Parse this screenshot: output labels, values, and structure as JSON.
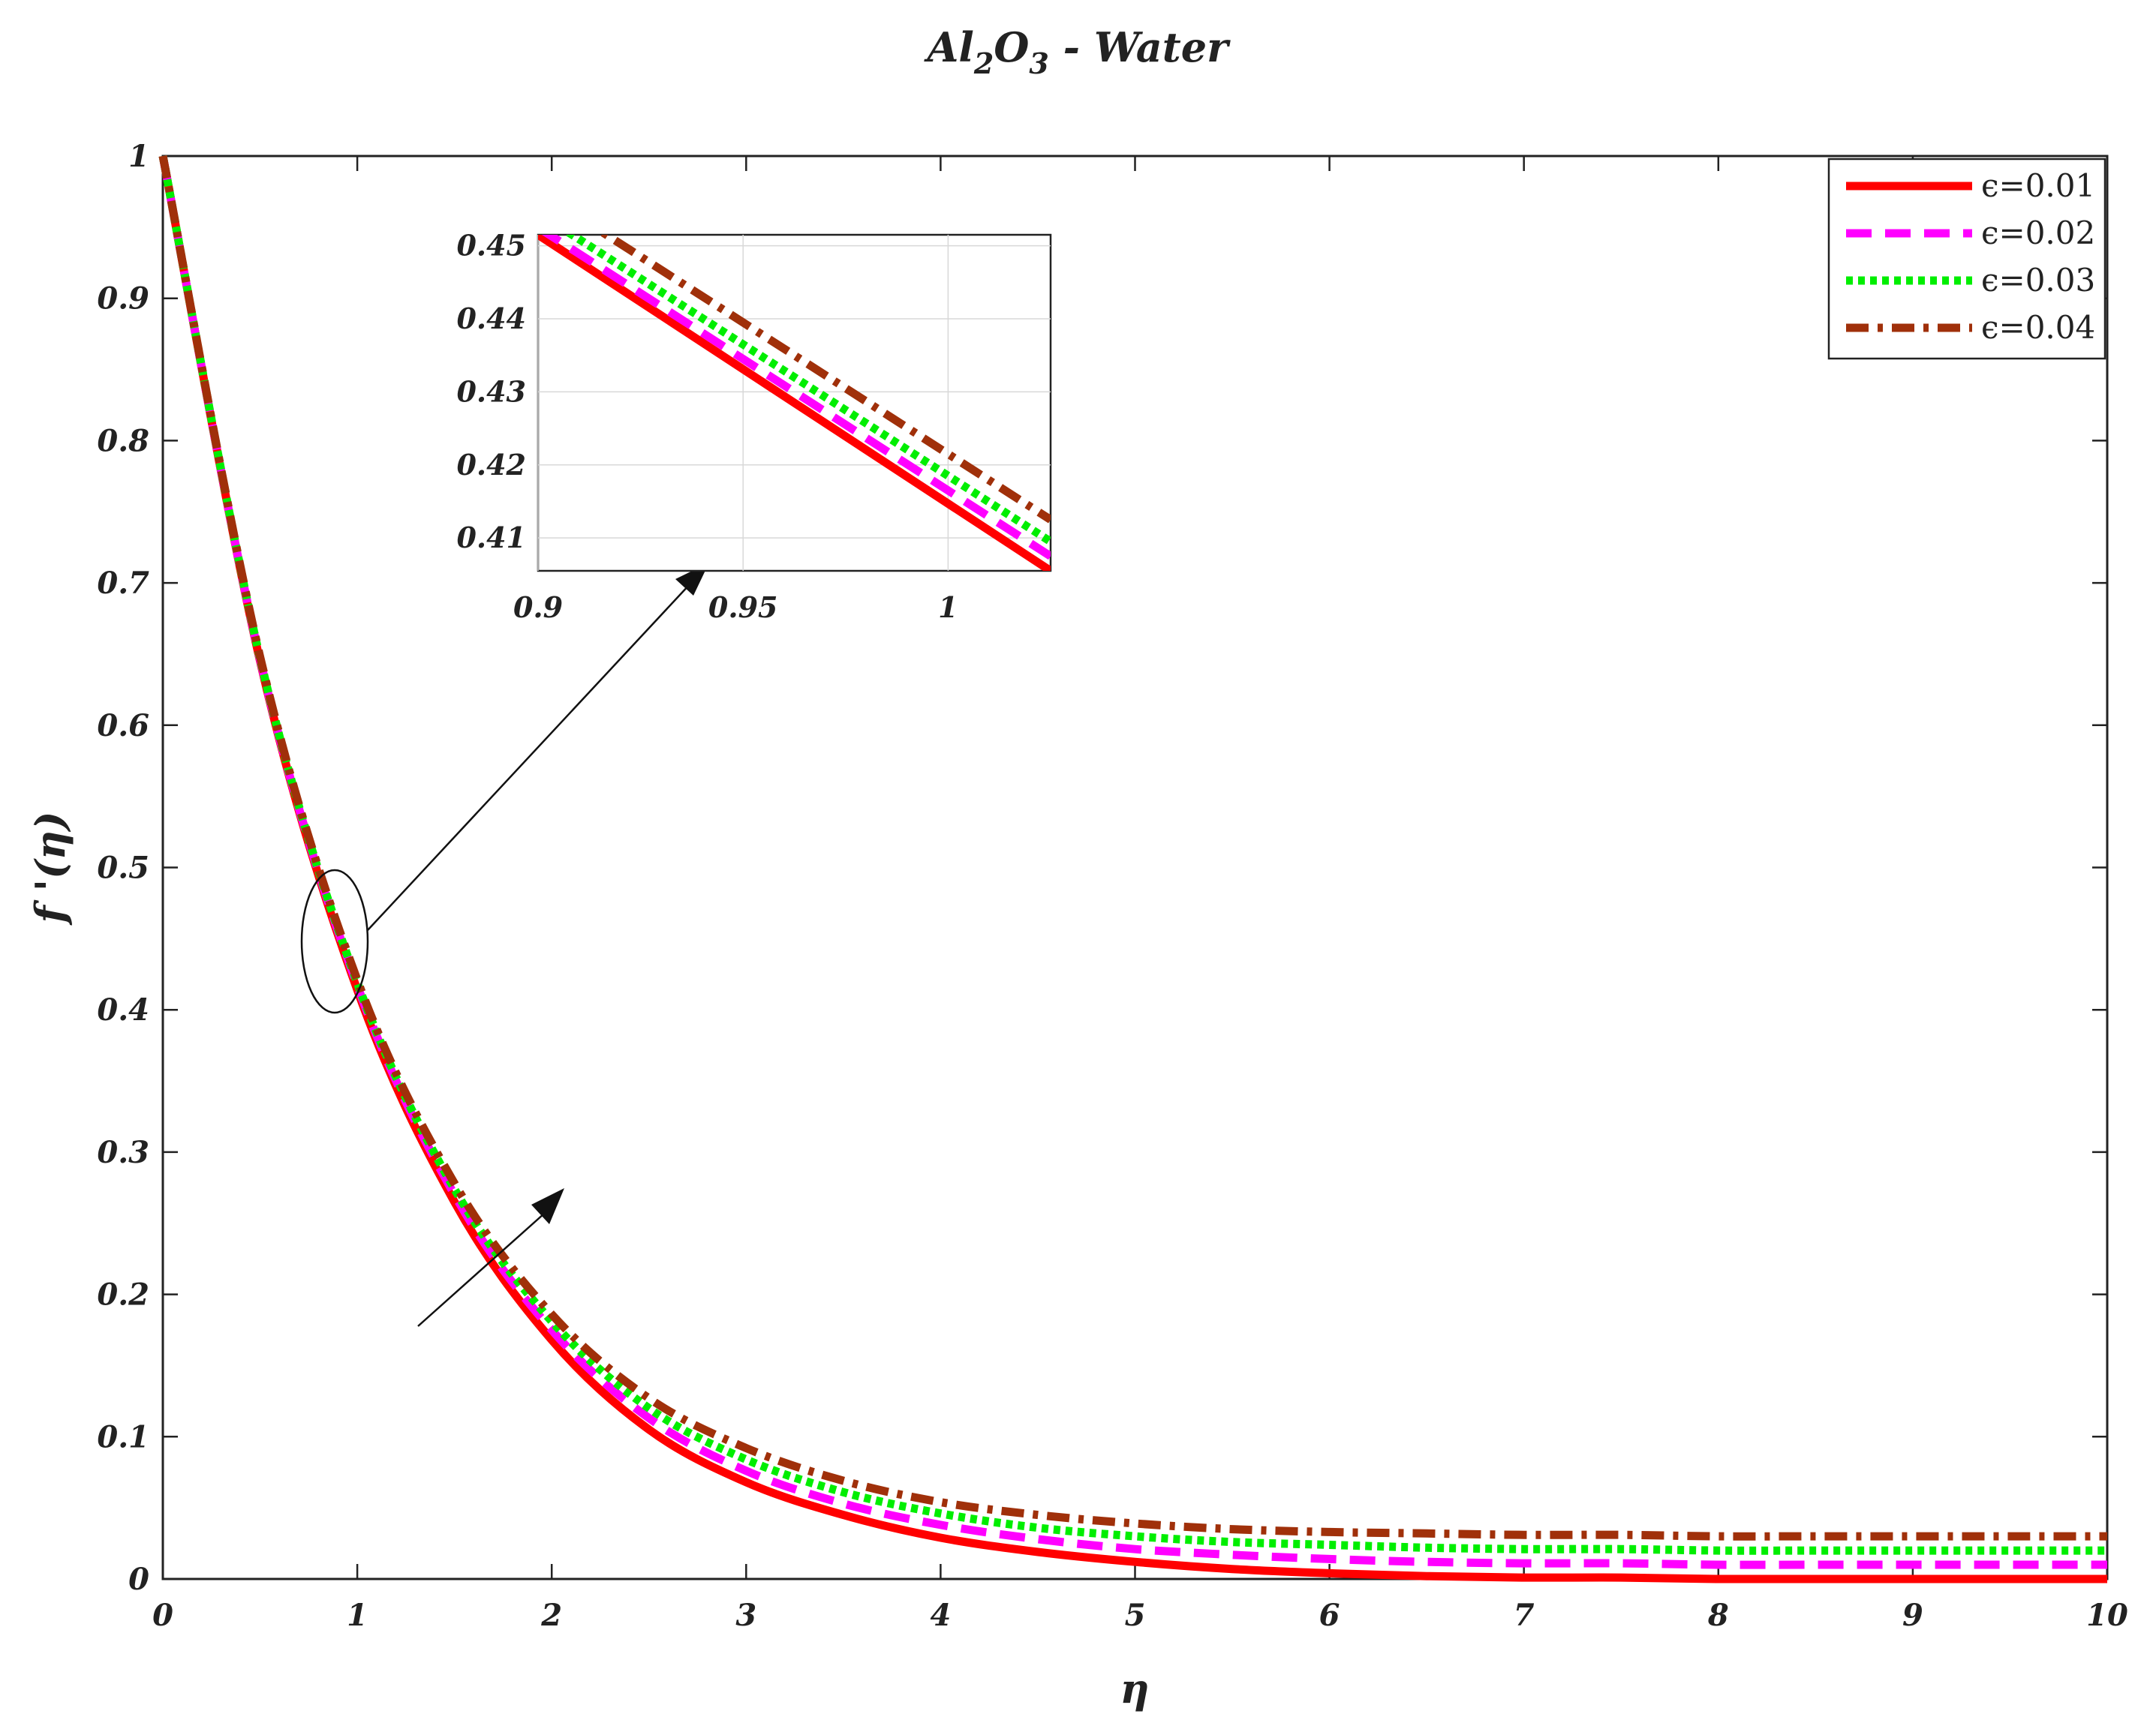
{
  "title": {
    "main": "Al",
    "sub1": "2",
    "mid": "O",
    "sub2": "3",
    "tail": " - Water"
  },
  "xlabel": "η",
  "ylabel": "f '(η)",
  "chart_data": {
    "type": "line",
    "title": "Al2O3 - Water",
    "xlabel": "η",
    "ylabel": "f '(η)",
    "xlim": [
      0,
      10
    ],
    "ylim": [
      0,
      1
    ],
    "xticks": [
      "0",
      "1",
      "2",
      "3",
      "4",
      "5",
      "6",
      "7",
      "8",
      "9",
      "10"
    ],
    "yticks": [
      "0",
      "0.1",
      "0.2",
      "0.3",
      "0.4",
      "0.5",
      "0.6",
      "0.7",
      "0.8",
      "0.9",
      "1"
    ],
    "grid": false,
    "legend_position": "top-right",
    "x": [
      0,
      0.5,
      1,
      1.5,
      2,
      2.5,
      3,
      3.5,
      4,
      4.5,
      5,
      5.5,
      6,
      6.5,
      7,
      7.5,
      8,
      8.5,
      9,
      9.5,
      10
    ],
    "series": [
      {
        "name": "ϵ=0.01",
        "color": "#ff0000",
        "style": "solid",
        "values": [
          1.0,
          0.645,
          0.414,
          0.265,
          0.168,
          0.105,
          0.068,
          0.045,
          0.029,
          0.019,
          0.012,
          0.007,
          0.004,
          0.002,
          0.001,
          0.001,
          0.0,
          0.0,
          0.0,
          0.0,
          0.0
        ]
      },
      {
        "name": "ϵ=0.02",
        "color": "#ff00ff",
        "style": "dashed",
        "values": [
          1.0,
          0.646,
          0.417,
          0.27,
          0.175,
          0.113,
          0.076,
          0.053,
          0.038,
          0.028,
          0.021,
          0.017,
          0.014,
          0.012,
          0.011,
          0.011,
          0.01,
          0.01,
          0.01,
          0.01,
          0.01
        ]
      },
      {
        "name": "ϵ=0.03",
        "color": "#00ee00",
        "style": "dotted",
        "values": [
          1.0,
          0.647,
          0.419,
          0.274,
          0.181,
          0.12,
          0.084,
          0.061,
          0.046,
          0.036,
          0.03,
          0.026,
          0.024,
          0.022,
          0.021,
          0.021,
          0.02,
          0.02,
          0.02,
          0.02,
          0.02
        ]
      },
      {
        "name": "ϵ=0.04",
        "color": "#a0300a",
        "style": "dashdot",
        "values": [
          1.0,
          0.648,
          0.421,
          0.278,
          0.186,
          0.127,
          0.092,
          0.069,
          0.054,
          0.045,
          0.039,
          0.035,
          0.033,
          0.032,
          0.031,
          0.031,
          0.03,
          0.03,
          0.03,
          0.03,
          0.03
        ]
      }
    ],
    "inset": {
      "xlim": [
        0.9,
        1.025
      ],
      "ylim": [
        0.4055,
        0.4515
      ],
      "xticks": [
        "0.9",
        "0.95",
        "1"
      ],
      "yticks": [
        "0.41",
        "0.42",
        "0.43",
        "0.44",
        "0.45"
      ],
      "grid": true,
      "lines": [
        {
          "name": "ϵ=0.01",
          "x": [
            0.9,
            1.025
          ],
          "y": [
            0.4515,
            0.4055
          ]
        },
        {
          "name": "ϵ=0.02",
          "x": [
            0.9,
            1.025
          ],
          "y": [
            0.4525,
            0.4075
          ]
        },
        {
          "name": "ϵ=0.03",
          "x": [
            0.9,
            1.025
          ],
          "y": [
            0.4545,
            0.4095
          ]
        },
        {
          "name": "ϵ=0.04",
          "x": [
            0.9,
            1.025
          ],
          "y": [
            0.4575,
            0.4125
          ]
        }
      ]
    },
    "annotations": [
      "ellipse around η≈0.9 linked to inset",
      "arrow indicating increase with ϵ"
    ]
  },
  "colors": {
    "eps001": "#ff0000",
    "eps002": "#ff00ff",
    "eps003": "#00ee00",
    "eps004": "#a0300a",
    "axis": "#222222",
    "grid": "#d8d8d8"
  }
}
